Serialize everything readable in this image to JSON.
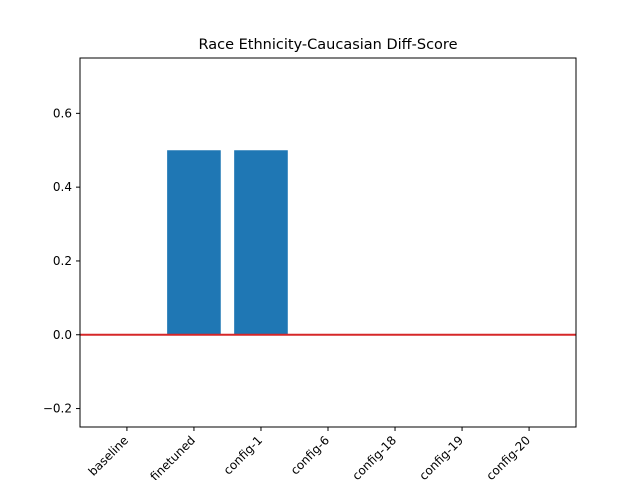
{
  "chart_data": {
    "type": "bar",
    "title": "Race Ethnicity-Caucasian Diff-Score",
    "xlabel": "",
    "ylabel": "",
    "categories": [
      "baseline",
      "finetuned",
      "config-1",
      "config-6",
      "config-18",
      "config-19",
      "config-20"
    ],
    "values": [
      0,
      0.5,
      0.5,
      0,
      0,
      0,
      0
    ],
    "ylim": [
      -0.25,
      0.75
    ],
    "yticks": [
      -0.2,
      0.0,
      0.2,
      0.4,
      0.6
    ],
    "ytick_labels": [
      "−0.2",
      "0.0",
      "0.2",
      "0.4",
      "0.6"
    ],
    "reference_line": {
      "y": 0,
      "color": "#d62728"
    },
    "bar_color": "#1f77b4",
    "grid": false,
    "legend": "none"
  }
}
